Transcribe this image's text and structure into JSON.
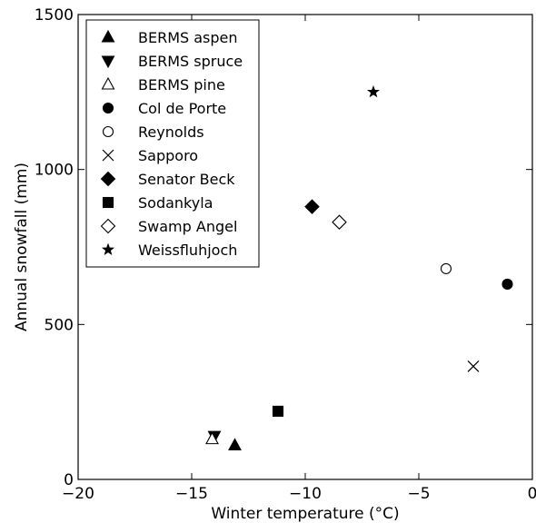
{
  "chart_data": {
    "type": "scatter",
    "title": "",
    "xlabel": "Winter temperature (°C)",
    "ylabel": "Annual snowfall (mm)",
    "xlim": [
      -20,
      0
    ],
    "ylim": [
      0,
      1500
    ],
    "x_ticks": [
      -20,
      -15,
      -10,
      -5,
      0
    ],
    "y_ticks": [
      0,
      500,
      1000,
      1500
    ],
    "x_tick_labels": [
      "−20",
      "−15",
      "−10",
      "−5",
      "0"
    ],
    "y_tick_labels": [
      "0",
      "500",
      "1000",
      "1500"
    ],
    "grid": false,
    "legend_position": "top-left",
    "series": [
      {
        "name": "BERMS aspen",
        "marker": "triangle-up-filled",
        "x": [
          -13.1
        ],
        "y": [
          110
        ]
      },
      {
        "name": "BERMS spruce",
        "marker": "triangle-down-filled",
        "x": [
          -14.0
        ],
        "y": [
          140
        ]
      },
      {
        "name": "BERMS pine",
        "marker": "triangle-up-open",
        "x": [
          -14.1
        ],
        "y": [
          130
        ]
      },
      {
        "name": "Col de Porte",
        "marker": "circle-filled",
        "x": [
          -1.1
        ],
        "y": [
          630
        ]
      },
      {
        "name": "Reynolds",
        "marker": "circle-open",
        "x": [
          -3.8
        ],
        "y": [
          680
        ]
      },
      {
        "name": "Sapporo",
        "marker": "x",
        "x": [
          -2.6
        ],
        "y": [
          365
        ]
      },
      {
        "name": "Senator Beck",
        "marker": "diamond-filled",
        "x": [
          -9.7
        ],
        "y": [
          880
        ]
      },
      {
        "name": "Sodankyla",
        "marker": "square-filled",
        "x": [
          -11.2
        ],
        "y": [
          220
        ]
      },
      {
        "name": "Swamp Angel",
        "marker": "diamond-open",
        "x": [
          -8.5
        ],
        "y": [
          830
        ]
      },
      {
        "name": "Weissfluhjoch",
        "marker": "star-filled",
        "x": [
          -7.0
        ],
        "y": [
          1250
        ]
      }
    ]
  }
}
